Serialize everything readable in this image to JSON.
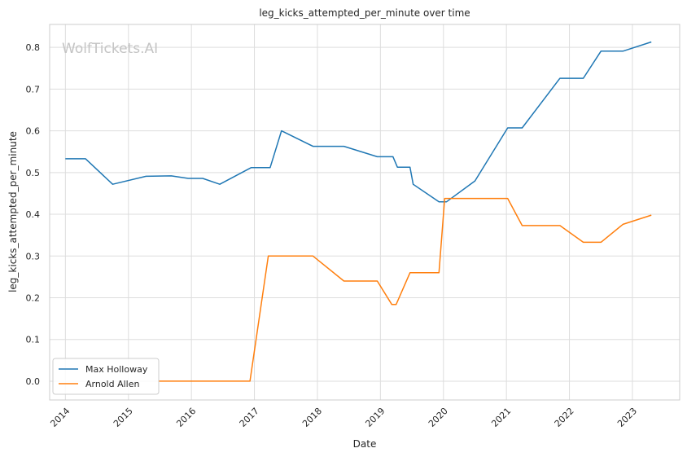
{
  "chart_data": {
    "type": "line",
    "title": "leg_kicks_attempted_per_minute over time",
    "xlabel": "Date",
    "ylabel": "leg_kicks_attempted_per_minute",
    "watermark": "WolfTickets.AI",
    "xlim": [
      2013.75,
      2023.75
    ],
    "ylim": [
      -0.045,
      0.855
    ],
    "x_ticks": [
      2014,
      2015,
      2016,
      2017,
      2018,
      2019,
      2020,
      2021,
      2022,
      2023
    ],
    "y_ticks": [
      0.0,
      0.1,
      0.2,
      0.3,
      0.4,
      0.5,
      0.6,
      0.7,
      0.8
    ],
    "y_tick_labels": [
      "0.0",
      "0.1",
      "0.2",
      "0.3",
      "0.4",
      "0.5",
      "0.6",
      "0.7",
      "0.8"
    ],
    "grid": true,
    "legend_position": "bottom-left",
    "series": [
      {
        "name": "Max Holloway",
        "color": "#1f77b4",
        "x": [
          2014.0,
          2014.32,
          2014.75,
          2015.28,
          2015.68,
          2015.95,
          2016.18,
          2016.45,
          2016.95,
          2017.25,
          2017.43,
          2017.93,
          2018.42,
          2018.95,
          2019.2,
          2019.27,
          2019.47,
          2019.52,
          2019.93,
          2020.05,
          2020.5,
          2021.02,
          2021.25,
          2021.85,
          2022.22,
          2022.5,
          2022.85,
          2023.3
        ],
        "y": [
          0.533,
          0.533,
          0.472,
          0.491,
          0.492,
          0.486,
          0.486,
          0.472,
          0.512,
          0.512,
          0.6,
          0.563,
          0.563,
          0.538,
          0.538,
          0.513,
          0.513,
          0.472,
          0.43,
          0.43,
          0.48,
          0.607,
          0.607,
          0.726,
          0.726,
          0.791,
          0.791,
          0.813
        ]
      },
      {
        "name": "Arnold Allen",
        "color": "#ff7f0e",
        "x": [
          2015.48,
          2016.93,
          2017.22,
          2017.93,
          2018.42,
          2018.95,
          2019.18,
          2019.25,
          2019.47,
          2019.93,
          2020.02,
          2021.02,
          2021.25,
          2021.85,
          2022.22,
          2022.5,
          2022.85,
          2023.3
        ],
        "y": [
          0.0,
          0.0,
          0.3,
          0.3,
          0.24,
          0.24,
          0.184,
          0.184,
          0.26,
          0.26,
          0.438,
          0.438,
          0.373,
          0.373,
          0.333,
          0.333,
          0.376,
          0.398
        ]
      }
    ]
  }
}
